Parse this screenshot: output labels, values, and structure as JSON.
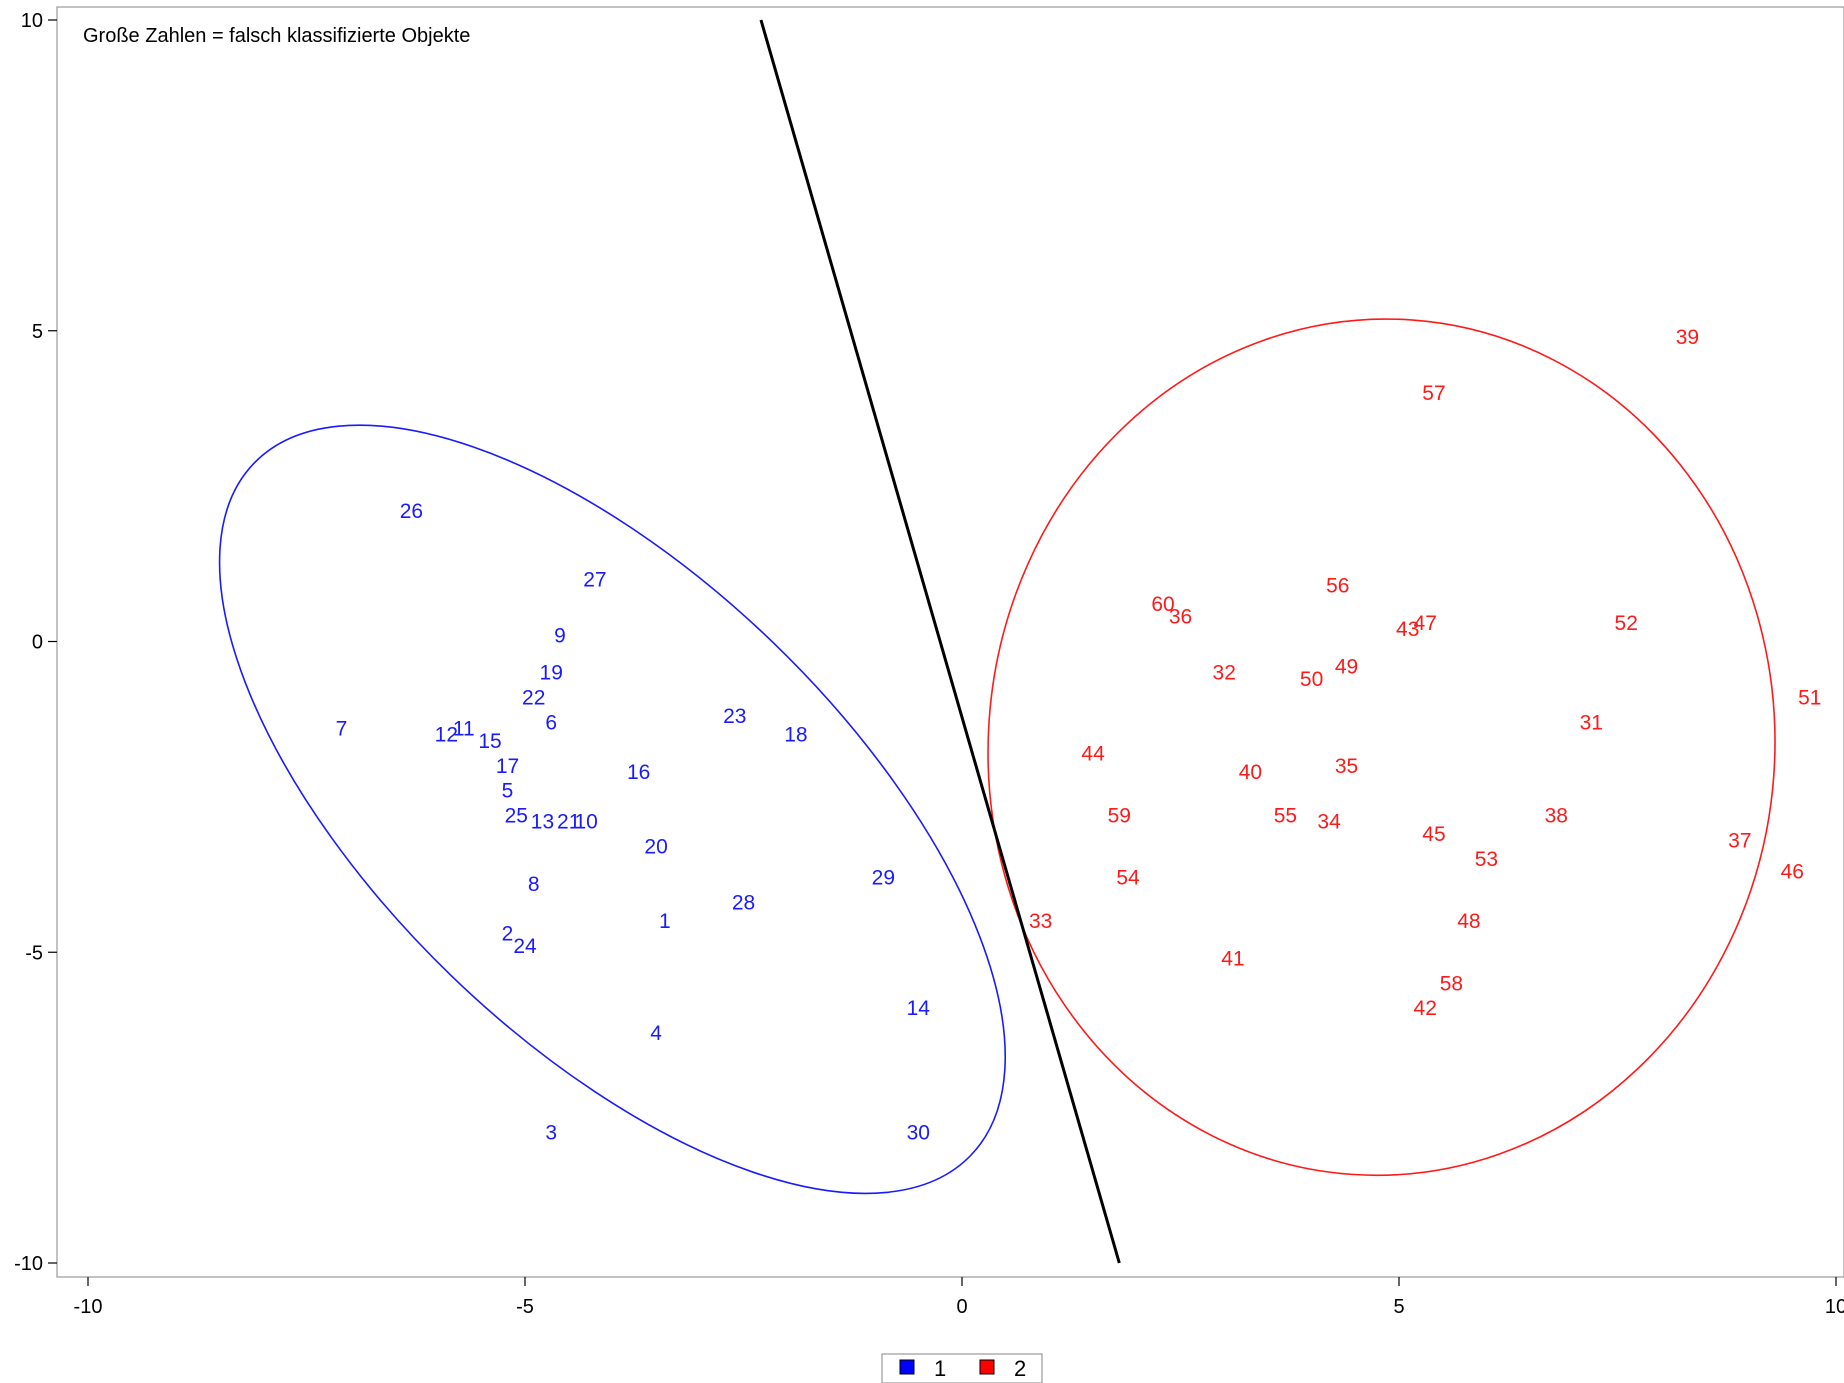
{
  "chart_data": {
    "type": "scatter",
    "annotation": "Große Zahlen = falsch klassifizierte Objekte",
    "xlim": [
      -10,
      10
    ],
    "ylim": [
      -10,
      10
    ],
    "xticks": [
      -10,
      -5,
      0,
      5,
      10
    ],
    "yticks": [
      10,
      5,
      0,
      -5,
      -10
    ],
    "grid": false,
    "legend_position": "bottom-center",
    "series": [
      {
        "name": "1",
        "color": "#1a1aff",
        "points": [
          {
            "label": "1",
            "x": -3.4,
            "y": -4.5
          },
          {
            "label": "2",
            "x": -5.2,
            "y": -4.7
          },
          {
            "label": "3",
            "x": -4.7,
            "y": -7.9
          },
          {
            "label": "4",
            "x": -3.5,
            "y": -6.3
          },
          {
            "label": "5",
            "x": -5.2,
            "y": -2.4
          },
          {
            "label": "6",
            "x": -4.7,
            "y": -1.3
          },
          {
            "label": "7",
            "x": -7.1,
            "y": -1.4
          },
          {
            "label": "8",
            "x": -4.9,
            "y": -3.9
          },
          {
            "label": "9",
            "x": -4.6,
            "y": 0.1
          },
          {
            "label": "10",
            "x": -4.3,
            "y": -2.9
          },
          {
            "label": "11",
            "x": -5.7,
            "y": -1.4
          },
          {
            "label": "12",
            "x": -5.9,
            "y": -1.5
          },
          {
            "label": "13",
            "x": -4.8,
            "y": -2.9
          },
          {
            "label": "14",
            "x": -0.5,
            "y": -5.9
          },
          {
            "label": "15",
            "x": -5.4,
            "y": -1.6
          },
          {
            "label": "16",
            "x": -3.7,
            "y": -2.1
          },
          {
            "label": "17",
            "x": -5.2,
            "y": -2.0
          },
          {
            "label": "18",
            "x": -1.9,
            "y": -1.5
          },
          {
            "label": "19",
            "x": -4.7,
            "y": -0.5
          },
          {
            "label": "20",
            "x": -3.5,
            "y": -3.3
          },
          {
            "label": "21",
            "x": -4.5,
            "y": -2.9
          },
          {
            "label": "22",
            "x": -4.9,
            "y": -0.9
          },
          {
            "label": "23",
            "x": -2.6,
            "y": -1.2
          },
          {
            "label": "24",
            "x": -5.0,
            "y": -4.9
          },
          {
            "label": "25",
            "x": -5.1,
            "y": -2.8
          },
          {
            "label": "26",
            "x": -6.3,
            "y": 2.1
          },
          {
            "label": "27",
            "x": -4.2,
            "y": 1.0
          },
          {
            "label": "28",
            "x": -2.5,
            "y": -4.2
          },
          {
            "label": "29",
            "x": -0.9,
            "y": -3.8
          },
          {
            "label": "30",
            "x": -0.5,
            "y": -7.9
          }
        ]
      },
      {
        "name": "2",
        "color": "#ff1a1a",
        "points": [
          {
            "label": "31",
            "x": 7.2,
            "y": -1.3
          },
          {
            "label": "32",
            "x": 3.0,
            "y": -0.5
          },
          {
            "label": "33",
            "x": 0.9,
            "y": -4.5
          },
          {
            "label": "34",
            "x": 4.2,
            "y": -2.9
          },
          {
            "label": "35",
            "x": 4.4,
            "y": -2.0
          },
          {
            "label": "36",
            "x": 2.5,
            "y": 0.4
          },
          {
            "label": "37",
            "x": 8.9,
            "y": -3.2
          },
          {
            "label": "38",
            "x": 6.8,
            "y": -2.8
          },
          {
            "label": "39",
            "x": 8.3,
            "y": 4.9
          },
          {
            "label": "40",
            "x": 3.3,
            "y": -2.1
          },
          {
            "label": "41",
            "x": 3.1,
            "y": -5.1
          },
          {
            "label": "42",
            "x": 5.3,
            "y": -5.9
          },
          {
            "label": "43",
            "x": 5.1,
            "y": 0.2
          },
          {
            "label": "44",
            "x": 1.5,
            "y": -1.8
          },
          {
            "label": "45",
            "x": 5.4,
            "y": -3.1
          },
          {
            "label": "46",
            "x": 9.5,
            "y": -3.7
          },
          {
            "label": "47",
            "x": 5.3,
            "y": 0.3
          },
          {
            "label": "48",
            "x": 5.8,
            "y": -4.5
          },
          {
            "label": "49",
            "x": 4.4,
            "y": -0.4
          },
          {
            "label": "50",
            "x": 4.0,
            "y": -0.6
          },
          {
            "label": "51",
            "x": 9.7,
            "y": -0.9
          },
          {
            "label": "52",
            "x": 7.6,
            "y": 0.3
          },
          {
            "label": "53",
            "x": 6.0,
            "y": -3.5
          },
          {
            "label": "54",
            "x": 1.9,
            "y": -3.8
          },
          {
            "label": "55",
            "x": 3.7,
            "y": -2.8
          },
          {
            "label": "56",
            "x": 4.3,
            "y": 0.9
          },
          {
            "label": "57",
            "x": 5.4,
            "y": 4.0
          },
          {
            "label": "58",
            "x": 5.6,
            "y": -5.5
          },
          {
            "label": "59",
            "x": 1.8,
            "y": -2.8
          },
          {
            "label": "60",
            "x": 2.3,
            "y": 0.6
          }
        ]
      }
    ],
    "ellipses": [
      {
        "series": "1",
        "color": "#1a1aff",
        "cx": -4.0,
        "cy": -2.7,
        "rx": 5.7,
        "ry": 2.65,
        "angle_deg": 44
      },
      {
        "series": "2",
        "color": "#ff1a1a",
        "cx": 4.8,
        "cy": -1.7,
        "rx": 4.5,
        "ry": 4.9,
        "angle_deg": 4
      }
    ],
    "separator_line": {
      "color": "#000000",
      "x1": -2.3,
      "y1": 10,
      "x2": 1.8,
      "y2": -10
    },
    "legend": [
      {
        "label": "1",
        "color": "#0000ff"
      },
      {
        "label": "2",
        "color": "#ff0000"
      }
    ]
  }
}
